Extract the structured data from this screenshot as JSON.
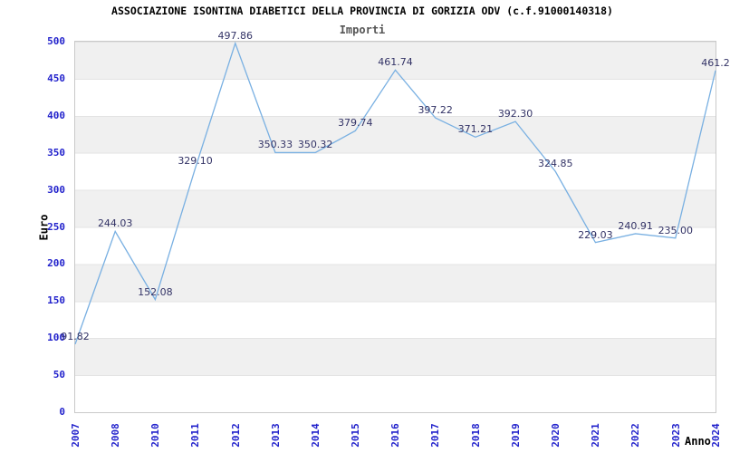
{
  "chart_data": {
    "type": "line",
    "title": "ASSOCIAZIONE ISONTINA DIABETICI DELLA PROVINCIA DI GORIZIA ODV (c.f.91000140318)",
    "subtitle": "Importi",
    "xlabel": "Anno",
    "ylabel": "Euro",
    "ylim": [
      0,
      500
    ],
    "y_ticks": [
      "0",
      "50",
      "100",
      "150",
      "200",
      "250",
      "300",
      "350",
      "400",
      "450",
      "500"
    ],
    "categories": [
      "2007",
      "2008",
      "2010",
      "2011",
      "2012",
      "2013",
      "2014",
      "2015",
      "2016",
      "2017",
      "2018",
      "2019",
      "2020",
      "2021",
      "2022",
      "2023",
      "2024"
    ],
    "values": [
      91.82,
      244.03,
      152.08,
      329.1,
      497.86,
      350.33,
      350.32,
      379.74,
      461.74,
      397.22,
      371.21,
      392.3,
      324.85,
      229.03,
      240.91,
      235.0,
      461.2
    ],
    "point_labels": [
      "91.82",
      "244.03",
      "152.08",
      "329.10",
      "497.86",
      "350.33",
      "350.32",
      "379.74",
      "461.74",
      "397.22",
      "371.21",
      "392.30",
      "324.85",
      "229.03",
      "240.91",
      "235.00",
      "461.2"
    ],
    "grid": "horizontal-bands-every-50",
    "legend": "none",
    "colors": {
      "line": "#79b0e2",
      "point_label": "#333366",
      "tick_label": "#2323cc",
      "band": "#f0f0f0",
      "plot_border": "#c9c9c9",
      "title": "#000000",
      "subtitle": "#555555"
    }
  }
}
